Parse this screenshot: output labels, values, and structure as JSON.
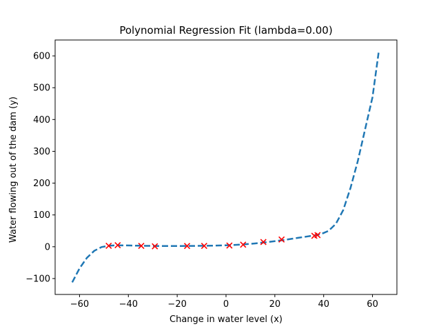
{
  "chart_data": {
    "type": "scatter",
    "title": "Polynomial Regression Fit (lambda=0.00)",
    "xlabel": "Change in water level (x)",
    "ylabel": "Water flowing out of the dam (y)",
    "xlim": [
      -70,
      70
    ],
    "ylim": [
      -150,
      650
    ],
    "xticks": [
      -60,
      -40,
      -20,
      0,
      20,
      40,
      60
    ],
    "yticks": [
      -100,
      0,
      100,
      200,
      300,
      400,
      500,
      600
    ],
    "xtick_labels": [
      "−60",
      "−40",
      "−20",
      "0",
      "20",
      "40",
      "60"
    ],
    "ytick_labels": [
      "−100",
      "0",
      "100",
      "200",
      "300",
      "400",
      "500",
      "600"
    ],
    "grid": false,
    "legend": "none",
    "series": [
      {
        "kind": "scatter",
        "marker": "x",
        "color": "#ff0000",
        "x": [
          -48.06,
          -44.38,
          -34.71,
          -29.15,
          -15.94,
          -8.94,
          1.39,
          7.01,
          15.31,
          22.76,
          36.19,
          37.49
        ],
        "y": [
          3.0,
          4.9,
          2.8,
          1.3,
          2.4,
          2.6,
          3.9,
          6.5,
          14.8,
          22.8,
          34.4,
          36.6
        ]
      },
      {
        "kind": "line",
        "style": "dashed",
        "color": "#1f77b4",
        "x": [
          -63,
          -60,
          -57,
          -54,
          -51,
          -48,
          -45,
          -42,
          -39,
          -36,
          -33,
          -30,
          -27,
          -24,
          -21,
          -18,
          -15,
          -12,
          -9,
          -6,
          -3,
          0,
          3,
          6,
          9,
          12,
          15,
          18,
          21,
          24,
          27,
          30,
          33,
          36,
          39,
          42,
          45,
          48,
          51,
          54,
          57,
          60,
          62.5
        ],
        "y": [
          -112,
          -68,
          -35,
          -13,
          -1,
          3,
          4.5,
          4.3,
          3.8,
          3.3,
          2.9,
          2.6,
          2.4,
          2.3,
          2.3,
          2.4,
          2.5,
          2.7,
          3,
          3.4,
          3.9,
          4.6,
          5.5,
          6.8,
          8.5,
          10.5,
          13,
          15.5,
          18.5,
          21.5,
          25,
          28.5,
          32,
          35.5,
          40,
          50,
          72,
          115,
          185,
          270,
          370,
          470,
          610
        ]
      }
    ]
  }
}
